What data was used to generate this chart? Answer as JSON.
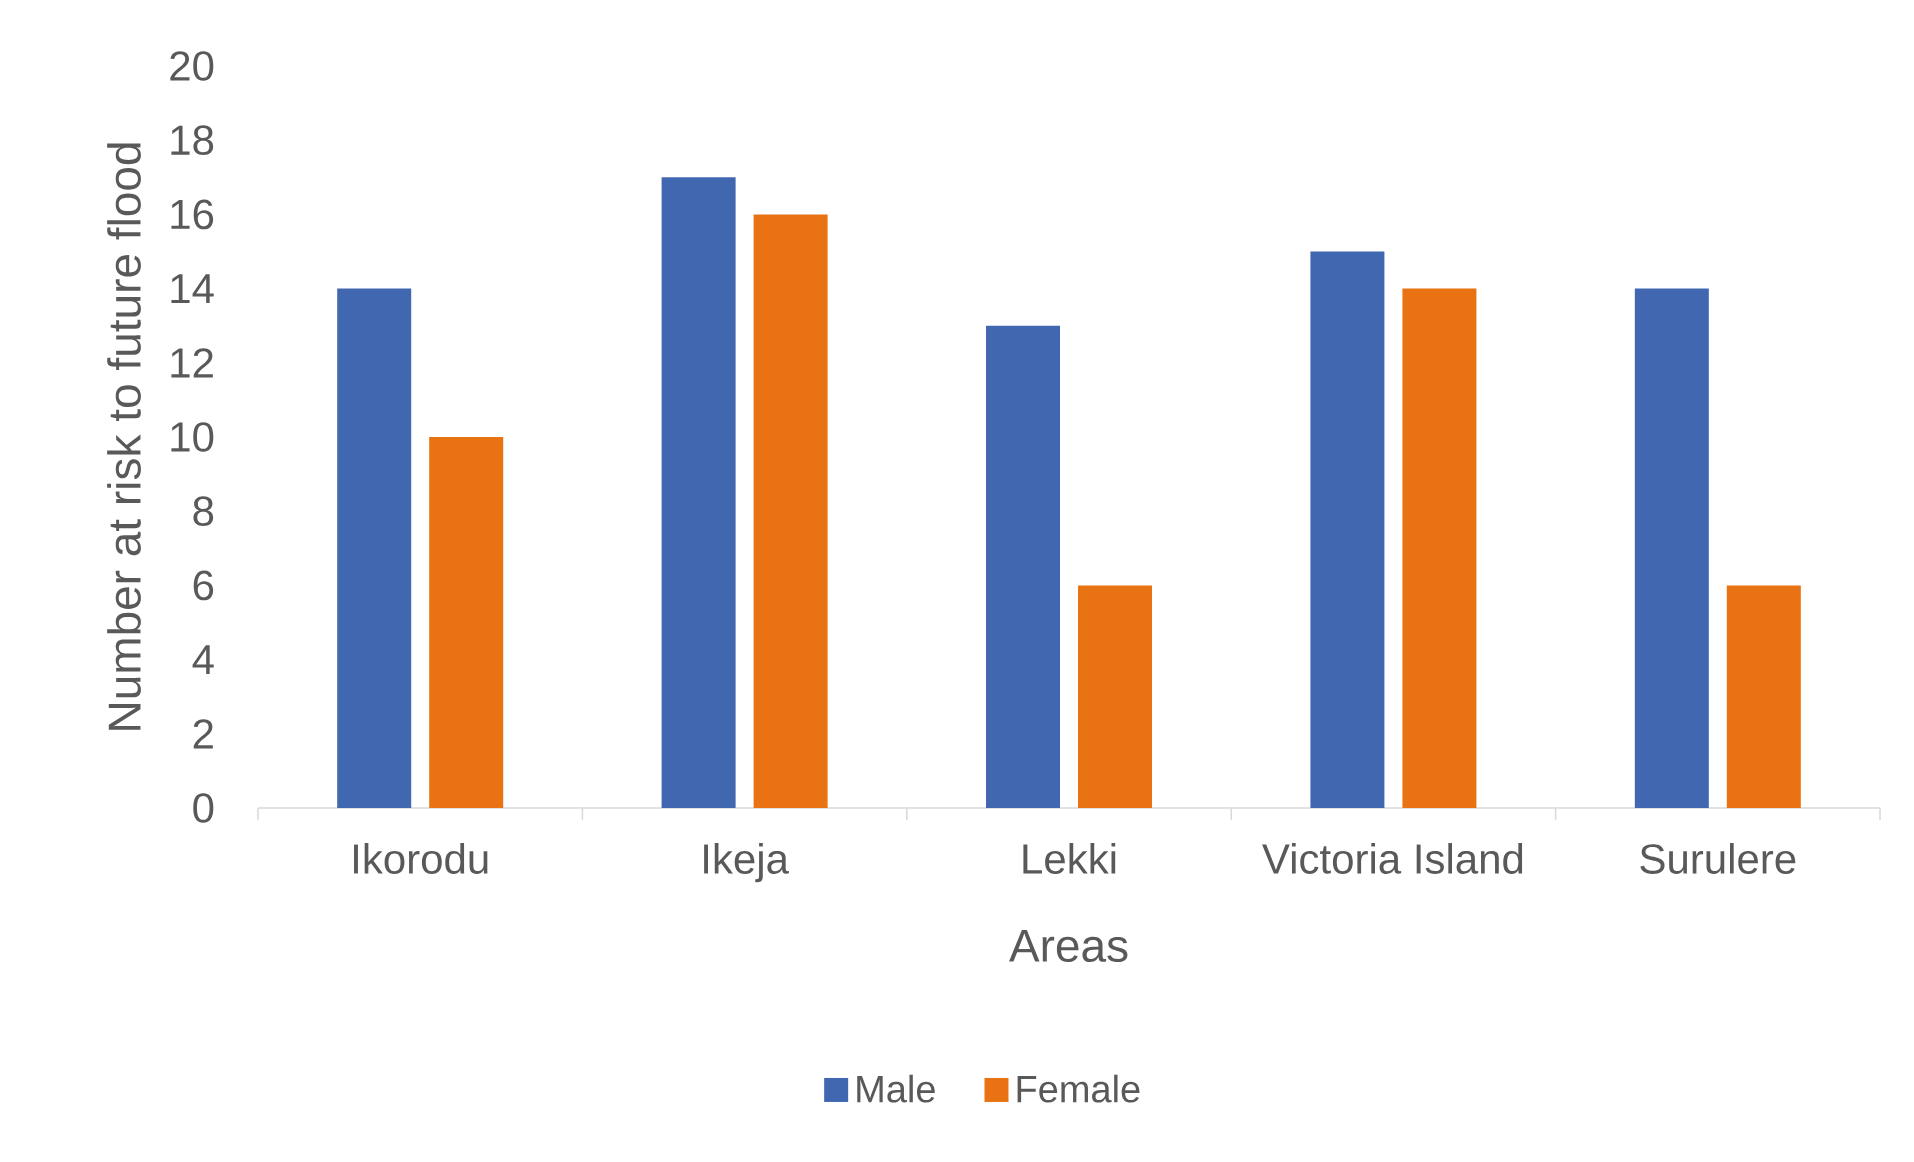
{
  "chart_data": {
    "type": "bar",
    "xlabel": "Areas",
    "ylabel": "Number at risk to future flood",
    "categories": [
      "Ikorodu",
      "Ikeja",
      "Lekki",
      "Victoria Island",
      "Surulere"
    ],
    "series": [
      {
        "name": "Male",
        "color": "#4167b0",
        "values": [
          14,
          17,
          13,
          15,
          14
        ]
      },
      {
        "name": "Female",
        "color": "#e97312",
        "values": [
          10,
          16,
          6,
          14,
          6
        ]
      }
    ],
    "ylim": [
      0,
      20
    ],
    "yticks": [
      0,
      2,
      4,
      6,
      8,
      10,
      12,
      14,
      16,
      18,
      20
    ],
    "legend": "bottom"
  }
}
